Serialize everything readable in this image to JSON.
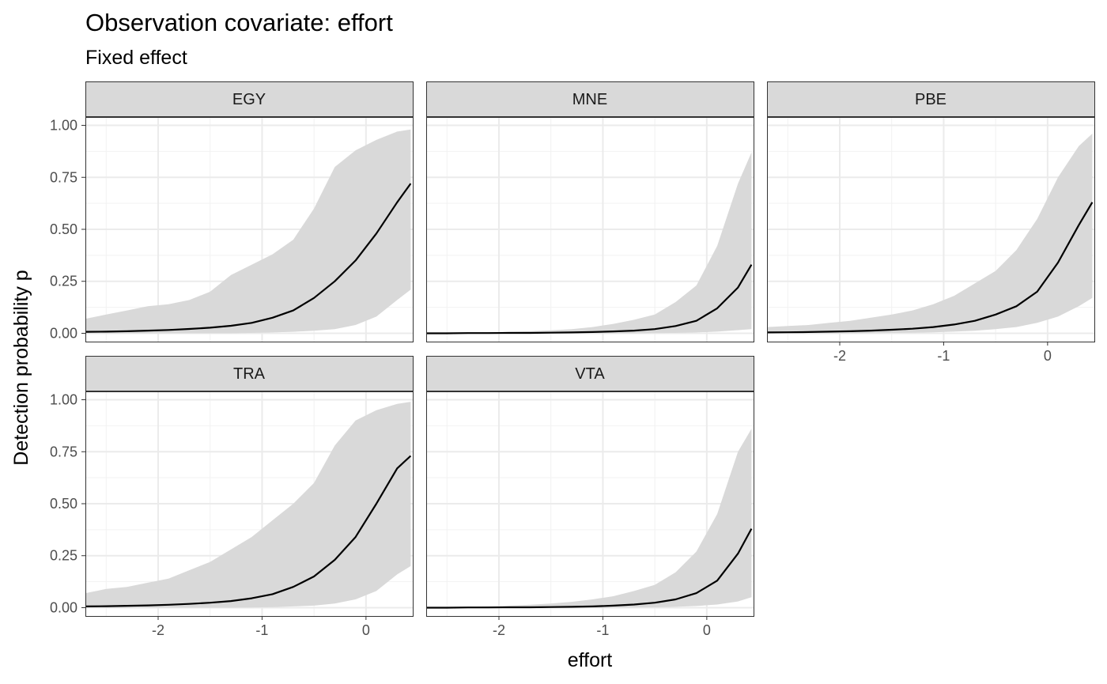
{
  "chart_data": {
    "type": "line",
    "title": "Observation covariate: effort",
    "subtitle": "Fixed effect",
    "xlabel": "effort",
    "ylabel": "Detection probability p",
    "xlim": [
      -2.7,
      0.45
    ],
    "ylim": [
      -0.04,
      1.04
    ],
    "x_ticks": [
      -2,
      -1,
      0
    ],
    "x_tick_labels": [
      "-2",
      "-1",
      "0"
    ],
    "y_ticks": [
      0,
      0.25,
      0.5,
      0.75,
      1
    ],
    "y_tick_labels": [
      "0.00",
      "0.25",
      "0.50",
      "0.75",
      "1.00"
    ],
    "grid": true,
    "band_color": "#d9d9d9",
    "line_color": "#000000",
    "panels": [
      {
        "name": "EGY",
        "x": [
          -2.7,
          -2.5,
          -2.3,
          -2.1,
          -1.9,
          -1.7,
          -1.5,
          -1.3,
          -1.1,
          -0.9,
          -0.7,
          -0.5,
          -0.3,
          -0.1,
          0.1,
          0.3,
          0.43
        ],
        "mean": [
          0.007,
          0.008,
          0.01,
          0.013,
          0.016,
          0.021,
          0.027,
          0.036,
          0.05,
          0.075,
          0.11,
          0.17,
          0.25,
          0.35,
          0.48,
          0.63,
          0.72
        ],
        "lower": [
          0.0,
          0.0,
          0.0,
          0.0,
          0.0,
          0.0,
          0.0,
          0.0,
          0.002,
          0.004,
          0.007,
          0.012,
          0.02,
          0.04,
          0.08,
          0.16,
          0.21
        ],
        "upper": [
          0.07,
          0.09,
          0.11,
          0.13,
          0.14,
          0.16,
          0.2,
          0.28,
          0.33,
          0.38,
          0.45,
          0.6,
          0.8,
          0.88,
          0.93,
          0.97,
          0.98
        ]
      },
      {
        "name": "MNE",
        "x": [
          -2.7,
          -2.5,
          -2.3,
          -2.1,
          -1.9,
          -1.7,
          -1.5,
          -1.3,
          -1.1,
          -0.9,
          -0.7,
          -0.5,
          -0.3,
          -0.1,
          0.1,
          0.3,
          0.43
        ],
        "mean": [
          0.0,
          0.0,
          0.001,
          0.001,
          0.002,
          0.002,
          0.003,
          0.004,
          0.006,
          0.009,
          0.013,
          0.02,
          0.035,
          0.06,
          0.12,
          0.22,
          0.33
        ],
        "lower": [
          0.0,
          0.0,
          0.0,
          0.0,
          0.0,
          0.0,
          0.0,
          0.0,
          0.0,
          0.0,
          0.0,
          0.001,
          0.002,
          0.004,
          0.008,
          0.015,
          0.02
        ],
        "upper": [
          0.0,
          0.002,
          0.003,
          0.005,
          0.007,
          0.01,
          0.014,
          0.02,
          0.03,
          0.045,
          0.065,
          0.09,
          0.15,
          0.23,
          0.42,
          0.72,
          0.87
        ]
      },
      {
        "name": "PBE",
        "x": [
          -2.7,
          -2.5,
          -2.3,
          -2.1,
          -1.9,
          -1.7,
          -1.5,
          -1.3,
          -1.1,
          -0.9,
          -0.7,
          -0.5,
          -0.3,
          -0.1,
          0.1,
          0.3,
          0.43
        ],
        "mean": [
          0.004,
          0.005,
          0.006,
          0.008,
          0.01,
          0.013,
          0.017,
          0.022,
          0.03,
          0.042,
          0.06,
          0.09,
          0.13,
          0.2,
          0.34,
          0.52,
          0.63
        ],
        "lower": [
          0.0,
          0.0,
          0.0,
          0.0,
          0.0,
          0.001,
          0.002,
          0.003,
          0.005,
          0.008,
          0.012,
          0.02,
          0.03,
          0.05,
          0.08,
          0.13,
          0.17
        ],
        "upper": [
          0.03,
          0.035,
          0.04,
          0.05,
          0.06,
          0.075,
          0.09,
          0.11,
          0.14,
          0.18,
          0.24,
          0.3,
          0.4,
          0.55,
          0.75,
          0.9,
          0.96
        ]
      },
      {
        "name": "TRA",
        "x": [
          -2.7,
          -2.5,
          -2.3,
          -2.1,
          -1.9,
          -1.7,
          -1.5,
          -1.3,
          -1.1,
          -0.9,
          -0.7,
          -0.5,
          -0.3,
          -0.1,
          0.1,
          0.3,
          0.43
        ],
        "mean": [
          0.006,
          0.007,
          0.009,
          0.011,
          0.014,
          0.018,
          0.024,
          0.032,
          0.045,
          0.065,
          0.1,
          0.15,
          0.23,
          0.34,
          0.5,
          0.67,
          0.73
        ],
        "lower": [
          0.0,
          0.0,
          0.0,
          0.0,
          0.0,
          0.0,
          0.0,
          0.0,
          0.001,
          0.003,
          0.006,
          0.01,
          0.02,
          0.04,
          0.08,
          0.16,
          0.2
        ],
        "upper": [
          0.07,
          0.09,
          0.1,
          0.12,
          0.14,
          0.18,
          0.22,
          0.28,
          0.34,
          0.42,
          0.5,
          0.6,
          0.78,
          0.9,
          0.95,
          0.98,
          0.99
        ]
      },
      {
        "name": "VTA",
        "x": [
          -2.7,
          -2.5,
          -2.3,
          -2.1,
          -1.9,
          -1.7,
          -1.5,
          -1.3,
          -1.1,
          -0.9,
          -0.7,
          -0.5,
          -0.3,
          -0.1,
          0.1,
          0.3,
          0.43
        ],
        "mean": [
          0.0,
          0.0,
          0.001,
          0.001,
          0.002,
          0.002,
          0.003,
          0.004,
          0.006,
          0.01,
          0.015,
          0.024,
          0.04,
          0.07,
          0.13,
          0.26,
          0.38
        ],
        "lower": [
          0.0,
          0.0,
          0.0,
          0.0,
          0.0,
          0.0,
          0.0,
          0.0,
          0.0,
          0.0,
          0.001,
          0.002,
          0.004,
          0.008,
          0.015,
          0.03,
          0.05
        ],
        "upper": [
          0.0,
          0.003,
          0.005,
          0.007,
          0.01,
          0.014,
          0.02,
          0.028,
          0.04,
          0.055,
          0.08,
          0.11,
          0.17,
          0.27,
          0.45,
          0.75,
          0.86
        ]
      }
    ]
  }
}
